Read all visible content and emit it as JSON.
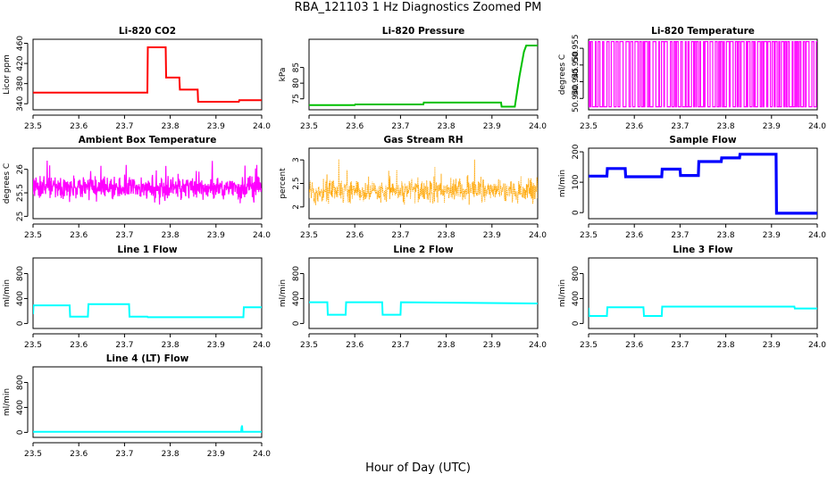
{
  "figure": {
    "title": "RBA_121103  1 Hz Diagnostics Zoomed PM",
    "xlabel": "Hour of Day (UTC)"
  },
  "chart_data": [
    {
      "type": "line",
      "title": "Li-820 CO2",
      "ylabel": "Licor ppm",
      "color": "#ff0000",
      "xlim": [
        23.5,
        24.0
      ],
      "ylim": [
        328,
        468
      ],
      "xticks": [
        "23.5",
        "23.6",
        "23.7",
        "23.8",
        "23.9",
        "24.0"
      ],
      "yticks": [
        340,
        380,
        420,
        460
      ],
      "style": "line",
      "x": [
        23.5,
        23.75,
        23.751,
        23.79,
        23.791,
        23.82,
        23.821,
        23.86,
        23.861,
        23.95,
        23.951,
        24.0
      ],
      "y": [
        362,
        362,
        452,
        452,
        392,
        392,
        368,
        368,
        344,
        344,
        347,
        347
      ]
    },
    {
      "type": "line",
      "title": "Li-820 Pressure",
      "ylabel": "kPa",
      "color": "#00c000",
      "xlim": [
        23.5,
        24.0
      ],
      "ylim": [
        71.5,
        94
      ],
      "xticks": [
        "23.5",
        "23.6",
        "23.7",
        "23.8",
        "23.9",
        "24.0"
      ],
      "yticks": [
        75,
        80,
        85
      ],
      "style": "line",
      "x": [
        23.5,
        23.6,
        23.601,
        23.75,
        23.751,
        23.92,
        23.921,
        23.95,
        23.96,
        23.97,
        23.975,
        24.0
      ],
      "y": [
        73.0,
        73.0,
        73.2,
        73.2,
        73.8,
        73.8,
        72.5,
        72.5,
        82,
        90,
        92,
        92
      ]
    },
    {
      "type": "line",
      "title": "Li-820 Temperature",
      "ylabel": "degrees C",
      "color": "#ff00ff",
      "xlim": [
        23.5,
        24.0
      ],
      "ylim": [
        50.9366,
        50.9577
      ],
      "xticks": [
        "23.5",
        "23.6",
        "23.7",
        "23.8",
        "23.9",
        "24.0"
      ],
      "yticks": [
        "50.940",
        "50.945",
        "50.950",
        "50.955"
      ],
      "style": "square-switching",
      "levels": [
        50.9375,
        50.957
      ]
    },
    {
      "type": "line",
      "title": "Ambient Box Temperature",
      "ylabel": "degrees C",
      "color": "#ff00ff",
      "xlim": [
        23.5,
        24.0
      ],
      "ylim": [
        24.95,
        26.45
      ],
      "xticks": [
        "23.5",
        "23.6",
        "23.7",
        "23.8",
        "23.9",
        "24.0"
      ],
      "yticks": [
        25.0,
        25.5,
        26.0
      ],
      "style": "noise",
      "mean": 25.6,
      "spread": 0.35
    },
    {
      "type": "scatter",
      "title": "Gas Stream RH",
      "ylabel": "percent",
      "color": "#ffa500",
      "xlim": [
        23.5,
        24.0
      ],
      "ylim": [
        1.75,
        3.25
      ],
      "xticks": [
        "23.5",
        "23.6",
        "23.7",
        "23.8",
        "23.9",
        "24.0"
      ],
      "yticks": [
        2.0,
        2.5,
        3.0
      ],
      "style": "noise",
      "mean": 2.35,
      "spread": 0.35
    },
    {
      "type": "line",
      "title": "Sample Flow",
      "ylabel": "ml/min",
      "color": "#0000ff",
      "xlim": [
        23.5,
        24.0
      ],
      "ylim": [
        -20,
        212
      ],
      "xticks": [
        "23.5",
        "23.6",
        "23.7",
        "23.8",
        "23.9",
        "24.0"
      ],
      "yticks": [
        0,
        100,
        200
      ],
      "style": "thick",
      "x": [
        23.5,
        23.54,
        23.541,
        23.58,
        23.581,
        23.66,
        23.661,
        23.7,
        23.701,
        23.74,
        23.741,
        23.79,
        23.791,
        23.83,
        23.831,
        23.91,
        23.911,
        24.0
      ],
      "y": [
        120,
        120,
        145,
        145,
        118,
        118,
        143,
        143,
        122,
        122,
        168,
        168,
        180,
        180,
        192,
        192,
        -2,
        -2
      ]
    },
    {
      "type": "line",
      "title": "Line 1 Flow",
      "ylabel": "ml/min",
      "color": "#00ffff",
      "xlim": [
        23.5,
        24.0
      ],
      "ylim": [
        -80,
        1050
      ],
      "xticks": [
        "23.5",
        "23.6",
        "23.7",
        "23.8",
        "23.9",
        "24.0"
      ],
      "yticks": [
        0,
        400,
        800
      ],
      "style": "line",
      "x": [
        23.5,
        23.501,
        23.58,
        23.581,
        23.62,
        23.621,
        23.71,
        23.711,
        23.75,
        23.751,
        23.96,
        23.961,
        24.0
      ],
      "y": [
        150,
        290,
        290,
        110,
        110,
        310,
        310,
        110,
        110,
        100,
        100,
        260,
        260
      ]
    },
    {
      "type": "line",
      "title": "Line 2 Flow",
      "ylabel": "ml/min",
      "color": "#00ffff",
      "xlim": [
        23.5,
        24.0
      ],
      "ylim": [
        -80,
        1050
      ],
      "xticks": [
        "23.5",
        "23.6",
        "23.7",
        "23.8",
        "23.9",
        "24.0"
      ],
      "yticks": [
        0,
        400,
        800
      ],
      "style": "line",
      "x": [
        23.5,
        23.54,
        23.541,
        23.58,
        23.581,
        23.66,
        23.661,
        23.7,
        23.701,
        24.0
      ],
      "y": [
        340,
        340,
        140,
        140,
        340,
        340,
        140,
        140,
        340,
        320
      ]
    },
    {
      "type": "line",
      "title": "Line 3 Flow",
      "ylabel": "ml/min",
      "color": "#00ffff",
      "xlim": [
        23.5,
        24.0
      ],
      "ylim": [
        -80,
        1050
      ],
      "xticks": [
        "23.5",
        "23.6",
        "23.7",
        "23.8",
        "23.9",
        "24.0"
      ],
      "yticks": [
        0,
        400,
        800
      ],
      "style": "line",
      "x": [
        23.5,
        23.501,
        23.54,
        23.541,
        23.62,
        23.621,
        23.66,
        23.661,
        23.95,
        23.951,
        24.0
      ],
      "y": [
        250,
        120,
        120,
        260,
        260,
        120,
        120,
        270,
        270,
        240,
        240
      ]
    },
    {
      "type": "line",
      "title": "Line 4 (LT) Flow",
      "ylabel": "ml/min",
      "color": "#00ffff",
      "xlim": [
        23.5,
        24.0
      ],
      "ylim": [
        -80,
        1050
      ],
      "xticks": [
        "23.5",
        "23.6",
        "23.7",
        "23.8",
        "23.9",
        "24.0"
      ],
      "yticks": [
        0,
        400,
        800
      ],
      "style": "line",
      "x": [
        23.5,
        23.955,
        23.956,
        23.957,
        23.958,
        24.0
      ],
      "y": [
        10,
        10,
        80,
        110,
        10,
        10
      ]
    }
  ]
}
